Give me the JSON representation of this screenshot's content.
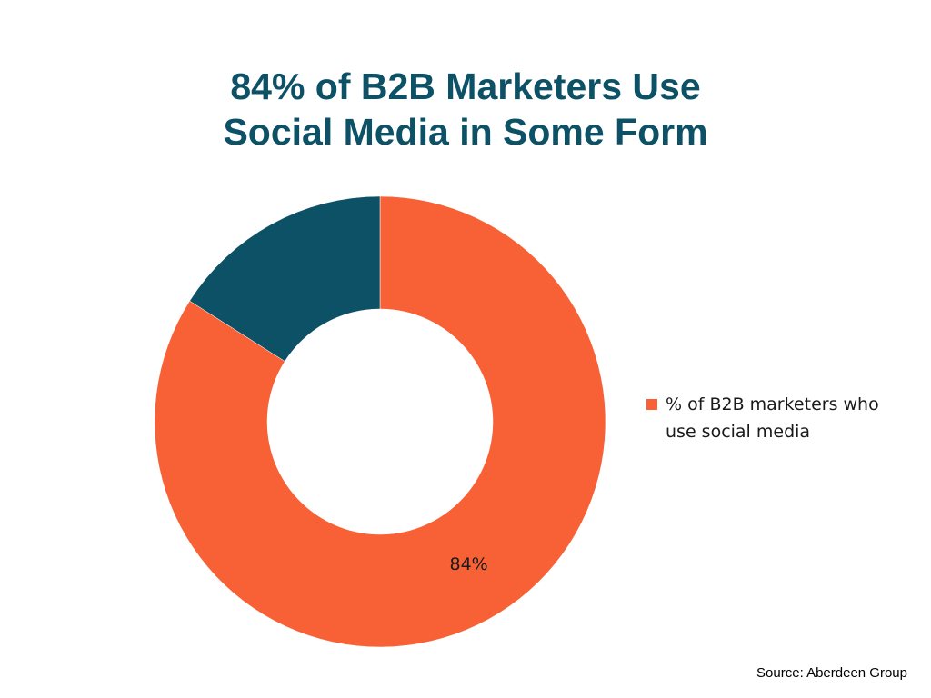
{
  "title": {
    "line1": "84% of B2B Marketers Use",
    "line2": "Social Media in Some Form"
  },
  "chart_data": {
    "type": "pie",
    "variant": "donut",
    "slices": [
      {
        "label": "% of B2B marketers who use social media",
        "value": 84,
        "data_label": "84%",
        "color": "#f86136"
      },
      {
        "label": "",
        "value": 16,
        "data_label": "",
        "color": "#0d5166"
      }
    ],
    "legend": {
      "placement": "right",
      "entries": [
        "% of B2B marketers who use social media"
      ]
    }
  },
  "source": "Source: Aberdeen Group"
}
